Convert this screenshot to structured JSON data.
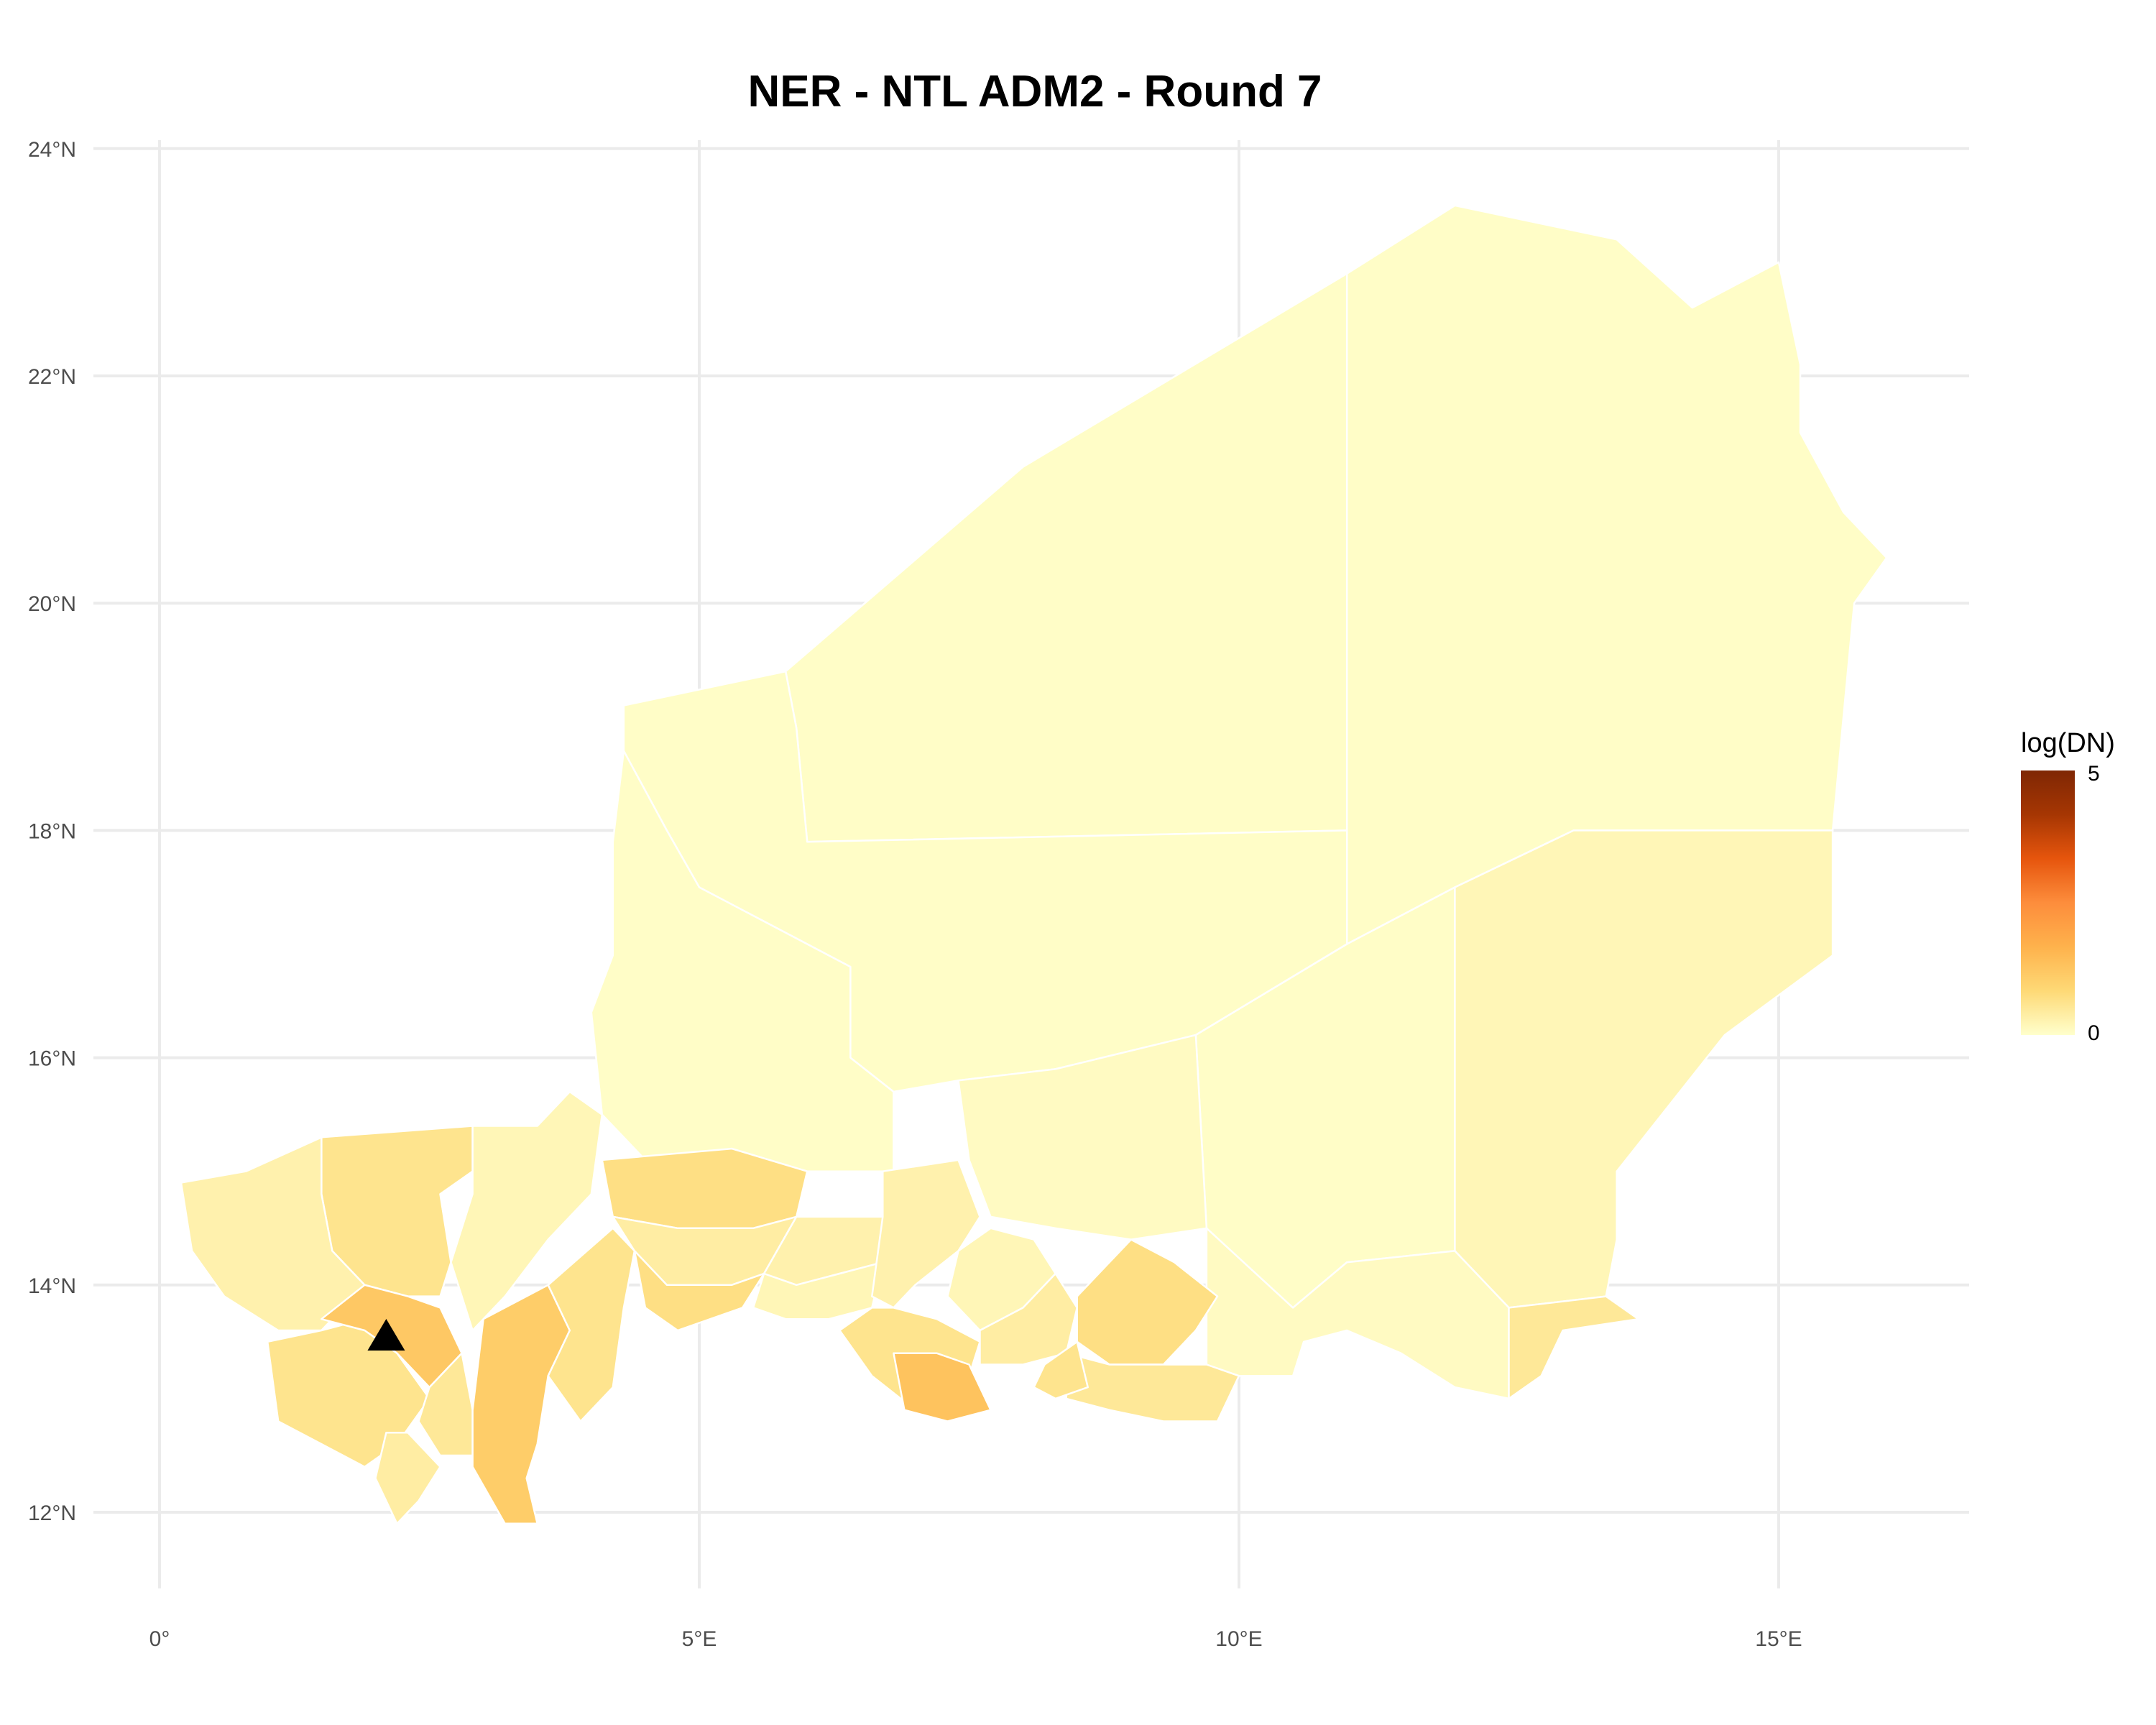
{
  "title": "NER - NTL ADM2 - Round 7",
  "map_data": {
    "type": "choropleth",
    "x_ticks": [
      "0°",
      "5°E",
      "10°E",
      "15°E"
    ],
    "x_tick_values": [
      0,
      5,
      10,
      15
    ],
    "y_ticks": [
      "12°N",
      "14°N",
      "16°N",
      "18°N",
      "20°N",
      "22°N",
      "24°N"
    ],
    "y_tick_values": [
      12,
      14,
      16,
      18,
      20,
      22,
      24
    ],
    "xlim": [
      -0.6,
      16.8
    ],
    "ylim": [
      11.2,
      24.2
    ],
    "grid": true,
    "legend": {
      "title": "log(DN)",
      "min_label": "0",
      "max_label": "5",
      "range": [
        0,
        5
      ],
      "colors": [
        "#ffffcc",
        "#fed976",
        "#feb24c",
        "#fd8d3c",
        "#e6550d",
        "#a63603",
        "#7f2704"
      ]
    },
    "marker": {
      "shape": "triangle",
      "lon": 2.1,
      "lat": 13.55,
      "color": "#000000"
    },
    "regions": [
      {
        "value": 0.05,
        "pts": [
          [
            5.8,
            19.4
          ],
          [
            8.0,
            21.2
          ],
          [
            11.0,
            22.9
          ],
          [
            11.0,
            18.0
          ],
          [
            6.0,
            17.9
          ],
          [
            5.9,
            18.9
          ]
        ]
      },
      {
        "value": 0.05,
        "pts": [
          [
            11.0,
            22.9
          ],
          [
            12.0,
            23.5
          ],
          [
            13.5,
            23.2
          ],
          [
            14.2,
            22.6
          ],
          [
            15.0,
            23.0
          ],
          [
            15.2,
            22.1
          ],
          [
            15.2,
            21.5
          ],
          [
            15.6,
            20.8
          ],
          [
            16.0,
            20.4
          ],
          [
            15.7,
            20.0
          ],
          [
            15.5,
            18.0
          ],
          [
            13.1,
            18.0
          ],
          [
            12.0,
            17.5
          ],
          [
            11.0,
            17.0
          ],
          [
            11.0,
            18.0
          ]
        ]
      },
      {
        "value": 0.05,
        "pts": [
          [
            4.3,
            19.1
          ],
          [
            5.8,
            19.4
          ],
          [
            5.9,
            18.9
          ],
          [
            6.0,
            17.9
          ],
          [
            11.0,
            18.0
          ],
          [
            11.0,
            17.0
          ],
          [
            9.6,
            16.2
          ],
          [
            8.3,
            15.9
          ],
          [
            7.4,
            15.8
          ],
          [
            6.8,
            15.7
          ],
          [
            6.4,
            16.0
          ],
          [
            6.4,
            16.8
          ],
          [
            5.0,
            17.5
          ],
          [
            4.7,
            18.0
          ],
          [
            4.3,
            18.7
          ]
        ]
      },
      {
        "value": 0.05,
        "pts": [
          [
            4.3,
            18.7
          ],
          [
            4.7,
            18.0
          ],
          [
            5.0,
            17.5
          ],
          [
            6.4,
            16.8
          ],
          [
            6.4,
            16.0
          ],
          [
            6.8,
            15.7
          ],
          [
            6.8,
            15.0
          ],
          [
            6.0,
            15.0
          ],
          [
            5.3,
            15.2
          ],
          [
            4.5,
            15.1
          ],
          [
            4.1,
            15.5
          ],
          [
            4.0,
            16.4
          ],
          [
            4.2,
            16.9
          ],
          [
            4.2,
            17.9
          ]
        ]
      },
      {
        "value": 0.05,
        "pts": [
          [
            11.0,
            17.0
          ],
          [
            12.0,
            17.5
          ],
          [
            12.0,
            14.3
          ],
          [
            11.0,
            14.2
          ],
          [
            10.5,
            13.8
          ],
          [
            9.7,
            13.3
          ],
          [
            9.7,
            14.5
          ],
          [
            9.6,
            16.2
          ]
        ]
      },
      {
        "value": 0.2,
        "pts": [
          [
            12.0,
            17.5
          ],
          [
            13.1,
            18.0
          ],
          [
            15.5,
            18.0
          ],
          [
            15.5,
            16.9
          ],
          [
            14.5,
            16.2
          ],
          [
            13.5,
            15.0
          ],
          [
            13.5,
            14.4
          ],
          [
            13.4,
            13.9
          ],
          [
            12.5,
            13.8
          ],
          [
            12.3,
            14.0
          ],
          [
            12.0,
            14.3
          ]
        ]
      },
      {
        "value": 0.1,
        "pts": [
          [
            7.4,
            15.8
          ],
          [
            8.3,
            15.9
          ],
          [
            9.6,
            16.2
          ],
          [
            9.7,
            14.5
          ],
          [
            9.0,
            14.4
          ],
          [
            8.3,
            14.5
          ],
          [
            7.7,
            14.6
          ],
          [
            7.5,
            15.1
          ]
        ]
      },
      {
        "value": 0.1,
        "pts": [
          [
            9.7,
            14.5
          ],
          [
            9.7,
            13.3
          ],
          [
            10.0,
            13.2
          ],
          [
            10.5,
            13.2
          ],
          [
            10.6,
            13.5
          ],
          [
            11.0,
            13.6
          ],
          [
            11.5,
            13.4
          ],
          [
            12.0,
            13.1
          ],
          [
            12.5,
            13.0
          ],
          [
            12.5,
            13.8
          ],
          [
            12.3,
            14.0
          ],
          [
            12.0,
            14.3
          ],
          [
            11.0,
            14.2
          ],
          [
            10.5,
            13.8
          ]
        ]
      },
      {
        "value": 0.5,
        "pts": [
          [
            12.5,
            13.8
          ],
          [
            13.4,
            13.9
          ],
          [
            13.7,
            13.7
          ],
          [
            13.0,
            13.6
          ],
          [
            12.8,
            13.2
          ],
          [
            12.5,
            13.0
          ]
        ]
      },
      {
        "value": 0.6,
        "pts": [
          [
            1.5,
            15.3
          ],
          [
            2.9,
            15.4
          ],
          [
            2.9,
            15.0
          ],
          [
            2.6,
            14.8
          ],
          [
            2.7,
            14.2
          ],
          [
            2.6,
            13.9
          ],
          [
            2.3,
            13.9
          ],
          [
            1.9,
            14.0
          ],
          [
            1.6,
            14.3
          ],
          [
            1.5,
            14.8
          ]
        ]
      },
      {
        "value": 0.3,
        "pts": [
          [
            0.2,
            14.9
          ],
          [
            0.8,
            15.0
          ],
          [
            1.5,
            15.3
          ],
          [
            1.5,
            14.8
          ],
          [
            1.6,
            14.3
          ],
          [
            1.9,
            14.0
          ],
          [
            1.5,
            13.6
          ],
          [
            1.1,
            13.6
          ],
          [
            0.6,
            13.9
          ],
          [
            0.3,
            14.3
          ]
        ]
      },
      {
        "value": 0.6,
        "pts": [
          [
            1.0,
            13.5
          ],
          [
            1.5,
            13.6
          ],
          [
            1.9,
            13.7
          ],
          [
            2.2,
            13.4
          ],
          [
            2.5,
            13.0
          ],
          [
            2.2,
            12.6
          ],
          [
            1.9,
            12.4
          ],
          [
            1.5,
            12.6
          ],
          [
            1.1,
            12.8
          ]
        ]
      },
      {
        "value": 1.2,
        "pts": [
          [
            1.5,
            13.7
          ],
          [
            1.9,
            14.0
          ],
          [
            2.3,
            13.9
          ],
          [
            2.6,
            13.8
          ],
          [
            2.8,
            13.4
          ],
          [
            2.5,
            13.1
          ],
          [
            2.2,
            13.4
          ],
          [
            1.9,
            13.6
          ]
        ]
      },
      {
        "value": 0.4,
        "pts": [
          [
            2.1,
            12.7
          ],
          [
            2.3,
            12.7
          ],
          [
            2.6,
            12.4
          ],
          [
            2.4,
            12.1
          ],
          [
            2.2,
            11.9
          ],
          [
            2.0,
            12.3
          ]
        ]
      },
      {
        "value": 0.5,
        "pts": [
          [
            2.5,
            13.1
          ],
          [
            2.8,
            13.4
          ],
          [
            2.9,
            12.9
          ],
          [
            2.9,
            12.5
          ],
          [
            2.6,
            12.5
          ],
          [
            2.4,
            12.8
          ]
        ]
      },
      {
        "value": 0.2,
        "pts": [
          [
            2.9,
            15.4
          ],
          [
            3.5,
            15.4
          ],
          [
            3.8,
            15.7
          ],
          [
            4.1,
            15.5
          ],
          [
            4.0,
            14.8
          ],
          [
            3.6,
            14.4
          ],
          [
            3.2,
            13.9
          ],
          [
            2.9,
            13.6
          ],
          [
            2.7,
            14.2
          ],
          [
            2.9,
            14.8
          ]
        ]
      },
      {
        "value": 1.1,
        "pts": [
          [
            3.0,
            13.7
          ],
          [
            3.6,
            14.0
          ],
          [
            3.8,
            13.6
          ],
          [
            3.6,
            13.2
          ],
          [
            3.5,
            12.6
          ],
          [
            3.4,
            12.3
          ],
          [
            3.5,
            11.9
          ],
          [
            3.2,
            11.9
          ],
          [
            2.9,
            12.4
          ],
          [
            2.9,
            12.9
          ]
        ]
      },
      {
        "value": 0.6,
        "pts": [
          [
            3.6,
            14.0
          ],
          [
            4.2,
            14.5
          ],
          [
            4.4,
            14.3
          ],
          [
            4.3,
            13.8
          ],
          [
            4.2,
            13.1
          ],
          [
            3.9,
            12.8
          ],
          [
            3.6,
            13.2
          ],
          [
            3.8,
            13.6
          ]
        ]
      },
      {
        "value": 0.7,
        "pts": [
          [
            4.1,
            15.1
          ],
          [
            5.3,
            15.2
          ],
          [
            6.0,
            15.0
          ],
          [
            5.9,
            14.6
          ],
          [
            5.5,
            14.5
          ],
          [
            4.8,
            14.5
          ],
          [
            4.2,
            14.6
          ]
        ]
      },
      {
        "value": 0.4,
        "pts": [
          [
            4.2,
            14.6
          ],
          [
            4.8,
            14.5
          ],
          [
            5.5,
            14.5
          ],
          [
            5.9,
            14.6
          ],
          [
            5.6,
            14.1
          ],
          [
            5.3,
            14.0
          ],
          [
            4.7,
            14.0
          ],
          [
            4.4,
            14.3
          ]
        ]
      },
      {
        "value": 0.3,
        "pts": [
          [
            5.9,
            14.6
          ],
          [
            6.7,
            14.6
          ],
          [
            6.7,
            14.2
          ],
          [
            6.3,
            14.1
          ],
          [
            5.9,
            14.0
          ],
          [
            5.6,
            14.1
          ]
        ]
      },
      {
        "value": 0.7,
        "pts": [
          [
            4.4,
            14.3
          ],
          [
            4.7,
            14.0
          ],
          [
            5.3,
            14.0
          ],
          [
            5.6,
            14.1
          ],
          [
            5.4,
            13.8
          ],
          [
            4.8,
            13.6
          ],
          [
            4.5,
            13.8
          ]
        ]
      },
      {
        "value": 0.2,
        "pts": [
          [
            5.6,
            14.1
          ],
          [
            5.9,
            14.0
          ],
          [
            6.3,
            14.1
          ],
          [
            6.7,
            14.2
          ],
          [
            6.6,
            13.8
          ],
          [
            6.2,
            13.7
          ],
          [
            5.8,
            13.7
          ],
          [
            5.5,
            13.8
          ]
        ]
      },
      {
        "value": 0.3,
        "pts": [
          [
            6.7,
            15.0
          ],
          [
            7.4,
            15.1
          ],
          [
            7.6,
            14.6
          ],
          [
            7.4,
            14.3
          ],
          [
            7.0,
            14.0
          ],
          [
            6.8,
            13.8
          ],
          [
            6.6,
            13.9
          ],
          [
            6.7,
            14.6
          ]
        ]
      },
      {
        "value": 0.6,
        "pts": [
          [
            6.6,
            13.8
          ],
          [
            6.8,
            13.8
          ],
          [
            7.2,
            13.7
          ],
          [
            7.6,
            13.5
          ],
          [
            7.5,
            13.2
          ],
          [
            7.0,
            12.9
          ],
          [
            6.6,
            13.2
          ],
          [
            6.3,
            13.6
          ]
        ]
      },
      {
        "value": 1.3,
        "pts": [
          [
            6.8,
            13.4
          ],
          [
            7.2,
            13.4
          ],
          [
            7.5,
            13.3
          ],
          [
            7.7,
            12.9
          ],
          [
            7.3,
            12.8
          ],
          [
            6.9,
            12.9
          ]
        ]
      },
      {
        "value": 0.2,
        "pts": [
          [
            7.4,
            14.3
          ],
          [
            7.7,
            14.5
          ],
          [
            8.1,
            14.4
          ],
          [
            8.3,
            14.1
          ],
          [
            8.0,
            13.8
          ],
          [
            7.6,
            13.6
          ],
          [
            7.3,
            13.9
          ]
        ]
      },
      {
        "value": 0.4,
        "pts": [
          [
            7.6,
            13.6
          ],
          [
            8.0,
            13.8
          ],
          [
            8.3,
            14.1
          ],
          [
            8.5,
            13.8
          ],
          [
            8.4,
            13.4
          ],
          [
            8.0,
            13.3
          ],
          [
            7.6,
            13.3
          ]
        ]
      },
      {
        "value": 0.7,
        "pts": [
          [
            8.5,
            13.9
          ],
          [
            9.0,
            14.4
          ],
          [
            9.4,
            14.2
          ],
          [
            9.8,
            13.9
          ],
          [
            9.6,
            13.6
          ],
          [
            9.3,
            13.3
          ],
          [
            8.8,
            13.3
          ],
          [
            8.5,
            13.5
          ]
        ]
      },
      {
        "value": 0.5,
        "pts": [
          [
            8.4,
            13.4
          ],
          [
            8.8,
            13.3
          ],
          [
            9.3,
            13.3
          ],
          [
            9.7,
            13.3
          ],
          [
            10.0,
            13.2
          ],
          [
            9.8,
            12.8
          ],
          [
            9.3,
            12.8
          ],
          [
            8.8,
            12.9
          ],
          [
            8.4,
            13.0
          ]
        ]
      },
      {
        "value": 0.6,
        "pts": [
          [
            8.2,
            13.3
          ],
          [
            8.5,
            13.5
          ],
          [
            8.6,
            13.1
          ],
          [
            8.3,
            13.0
          ],
          [
            8.1,
            13.1
          ]
        ]
      }
    ]
  }
}
